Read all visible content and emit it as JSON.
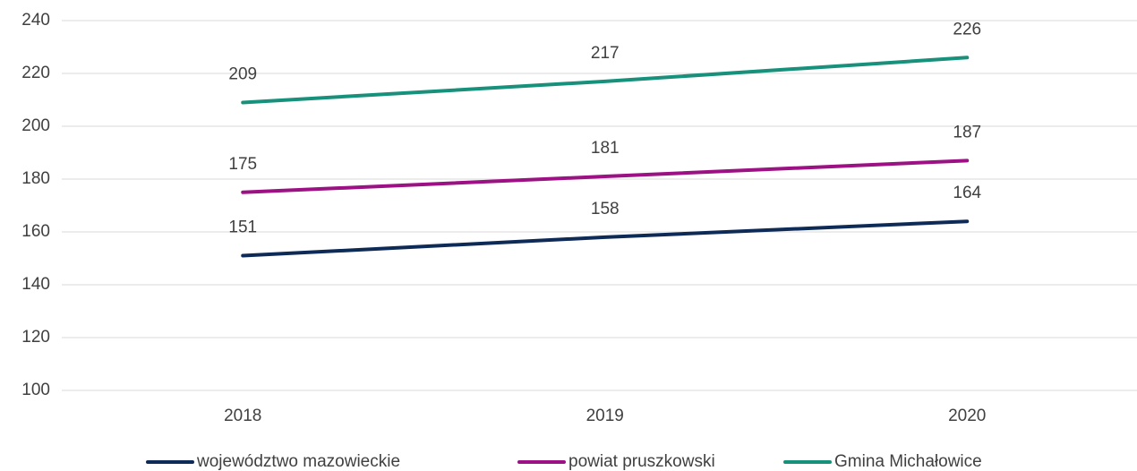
{
  "chart_data": {
    "type": "line",
    "categories": [
      "2018",
      "2019",
      "2020"
    ],
    "series": [
      {
        "name": "województwo mazowieckie",
        "color": "#0e2b58",
        "values": [
          151,
          158,
          164
        ]
      },
      {
        "name": "powiat pruszkowski",
        "color": "#9c1183",
        "values": [
          175,
          181,
          187
        ]
      },
      {
        "name": "Gmina Michałowice",
        "color": "#17917b",
        "values": [
          209,
          217,
          226
        ]
      }
    ],
    "ylim": [
      100,
      240
    ],
    "yticks": [
      100,
      120,
      140,
      160,
      180,
      200,
      220,
      240
    ],
    "grid": true,
    "legend": "bottom"
  }
}
